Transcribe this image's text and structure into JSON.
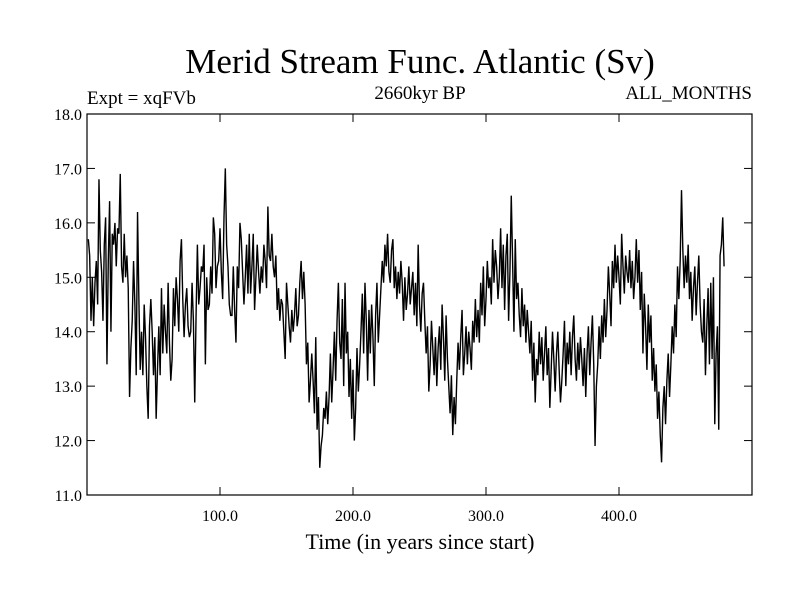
{
  "chart_data": {
    "type": "line",
    "title": "Merid Stream Func. Atlantic (Sv)",
    "subtitle_left": "Expt = xqFVb",
    "subtitle_center": "2660kyr BP",
    "subtitle_right": "ALL_MONTHS",
    "xlabel": "Time (in years since start)",
    "ylabel": "",
    "xlim": [
      0,
      500
    ],
    "ylim": [
      11.0,
      18.0
    ],
    "xticks": [
      100,
      200,
      300,
      400
    ],
    "xtick_labels": [
      "100.0",
      "200.0",
      "300.0",
      "400.0"
    ],
    "yticks": [
      11,
      12,
      13,
      14,
      15,
      16,
      17,
      18
    ],
    "ytick_labels": [
      "11.0",
      "12.0",
      "13.0",
      "14.0",
      "15.0",
      "16.0",
      "17.0",
      "18.0"
    ],
    "series": [
      {
        "name": "Merid Stream Func. Atlantic",
        "color": "#000000",
        "x_start": 1,
        "x_step": 1,
        "values": [
          15.7,
          15.4,
          14.2,
          15.0,
          14.1,
          14.9,
          15.3,
          14.5,
          16.8,
          15.5,
          15.1,
          14.2,
          15.6,
          16.1,
          13.4,
          15.3,
          16.4,
          14.0,
          15.8,
          15.6,
          16.0,
          15.2,
          15.9,
          15.8,
          16.9,
          15.2,
          14.9,
          15.8,
          15.0,
          15.4,
          14.8,
          12.8,
          13.7,
          14.2,
          15.3,
          14.5,
          13.2,
          16.2,
          14.6,
          13.3,
          14.0,
          13.2,
          14.5,
          13.9,
          13.0,
          12.4,
          14.1,
          14.6,
          14.0,
          13.2,
          13.9,
          12.4,
          13.3,
          14.1,
          13.2,
          14.8,
          13.6,
          14.5,
          14.0,
          13.6,
          14.9,
          13.8,
          13.1,
          13.5,
          14.8,
          14.1,
          15.0,
          14.6,
          14.0,
          15.3,
          15.7,
          14.6,
          13.9,
          14.5,
          14.8,
          14.1,
          13.9,
          14.0,
          14.9,
          14.2,
          12.7,
          14.3,
          15.6,
          14.5,
          14.8,
          15.2,
          15.1,
          15.6,
          13.4,
          15.0,
          14.4,
          14.5,
          15.2,
          14.7,
          16.1,
          15.8,
          14.8,
          15.2,
          15.3,
          15.9,
          15.1,
          14.6,
          16.1,
          17.0,
          15.6,
          15.2,
          14.5,
          14.3,
          14.3,
          15.2,
          14.4,
          13.8,
          15.2,
          14.8,
          16.0,
          15.7,
          15.1,
          14.5,
          15.0,
          15.6,
          14.7,
          15.8,
          14.7,
          15.2,
          15.8,
          14.4,
          15.0,
          15.6,
          15.1,
          14.7,
          15.2,
          14.9,
          15.6,
          15.3,
          14.8,
          16.3,
          15.4,
          15.3,
          15.8,
          15.2,
          15.0,
          15.4,
          14.4,
          14.8,
          14.2,
          14.6,
          14.5,
          14.0,
          13.5,
          14.9,
          14.5,
          14.1,
          13.8,
          14.4,
          14.0,
          14.3,
          14.8,
          14.1,
          14.3,
          14.9,
          15.3,
          14.6,
          15.1,
          14.5,
          13.4,
          13.8,
          12.7,
          13.1,
          13.6,
          13.1,
          12.5,
          13.9,
          12.2,
          12.8,
          11.5,
          11.9,
          12.1,
          12.6,
          12.4,
          12.9,
          12.3,
          12.8,
          13.6,
          12.7,
          13.3,
          14.0,
          13.1,
          14.2,
          14.9,
          13.8,
          13.5,
          14.6,
          13.0,
          14.9,
          13.6,
          14.0,
          12.8,
          13.5,
          12.4,
          13.3,
          12.0,
          12.6,
          13.7,
          12.9,
          13.4,
          14.0,
          14.7,
          13.6,
          14.9,
          14.2,
          13.1,
          14.4,
          13.6,
          14.5,
          13.9,
          13.0,
          14.3,
          14.9,
          13.8,
          14.3,
          14.8,
          15.3,
          14.9,
          15.6,
          15.2,
          15.8,
          15.1,
          14.9,
          15.5,
          15.7,
          14.8,
          15.2,
          14.6,
          15.1,
          14.7,
          15.3,
          14.9,
          14.2,
          15.0,
          14.4,
          14.7,
          15.2,
          14.5,
          14.8,
          15.1,
          14.3,
          14.9,
          14.1,
          15.6,
          14.5,
          14.0,
          14.7,
          14.9,
          14.2,
          13.6,
          14.1,
          12.9,
          13.4,
          14.2,
          13.7,
          13.2,
          13.9,
          13.0,
          13.7,
          14.1,
          13.3,
          14.5,
          13.9,
          13.1,
          14.3,
          13.5,
          13.0,
          12.5,
          13.2,
          12.1,
          12.8,
          12.3,
          13.1,
          13.8,
          13.3,
          13.9,
          14.4,
          13.2,
          13.6,
          14.1,
          13.4,
          14.0,
          13.7,
          13.3,
          14.2,
          13.8,
          14.6,
          13.9,
          14.4,
          13.8,
          14.9,
          14.3,
          15.2,
          14.1,
          14.6,
          15.3,
          14.8,
          15.0,
          14.5,
          15.7,
          14.9,
          15.5,
          15.2,
          14.6,
          15.0,
          15.9,
          14.8,
          15.6,
          14.4,
          15.4,
          15.8,
          14.2,
          15.1,
          16.5,
          15.3,
          14.0,
          15.7,
          14.6,
          14.9,
          14.3,
          13.9,
          14.8,
          14.1,
          14.5,
          13.8,
          14.4,
          14.0,
          13.6,
          14.2,
          13.1,
          13.8,
          12.7,
          13.5,
          13.2,
          14.0,
          13.4,
          13.9,
          13.1,
          13.6,
          14.1,
          13.2,
          13.7,
          12.6,
          13.3,
          14.0,
          13.5,
          12.9,
          13.6,
          14.0,
          13.3,
          12.7,
          13.1,
          13.6,
          14.2,
          13.0,
          13.8,
          13.4,
          14.0,
          13.2,
          13.9,
          14.3,
          13.5,
          13.1,
          13.8,
          13.3,
          13.9,
          13.5,
          13.0,
          13.7,
          12.8,
          13.6,
          14.1,
          13.2,
          13.8,
          14.3,
          13.4,
          11.9,
          13.0,
          13.4,
          14.1,
          13.5,
          14.3,
          13.8,
          14.6,
          13.9,
          14.4,
          15.2,
          14.7,
          14.1,
          15.3,
          14.8,
          15.6,
          14.9,
          15.4,
          15.0,
          14.5,
          15.8,
          15.2,
          14.7,
          15.4,
          15.1,
          14.9,
          15.5,
          14.8,
          15.3,
          14.6,
          15.0,
          15.7,
          14.9,
          15.5,
          14.4,
          15.1,
          13.6,
          14.7,
          14.1,
          13.3,
          14.5,
          13.8,
          14.3,
          13.1,
          13.7,
          12.9,
          13.4,
          12.4,
          12.9,
          12.1,
          11.6,
          12.6,
          13.0,
          12.3,
          13.1,
          13.6,
          12.8,
          13.4,
          14.1,
          13.6,
          14.5,
          13.9,
          15.2,
          14.6,
          15.3,
          16.6,
          15.5,
          14.8,
          15.4,
          14.9,
          15.6,
          14.6,
          15.1,
          14.2,
          14.8,
          15.2,
          14.3,
          14.9,
          15.4,
          14.5,
          14.0,
          13.8,
          14.6,
          13.2,
          14.1,
          14.8,
          13.4,
          14.9,
          13.5,
          15.0,
          12.3,
          13.6,
          14.1,
          12.2,
          15.4,
          15.6,
          16.1,
          15.2
        ]
      }
    ]
  }
}
